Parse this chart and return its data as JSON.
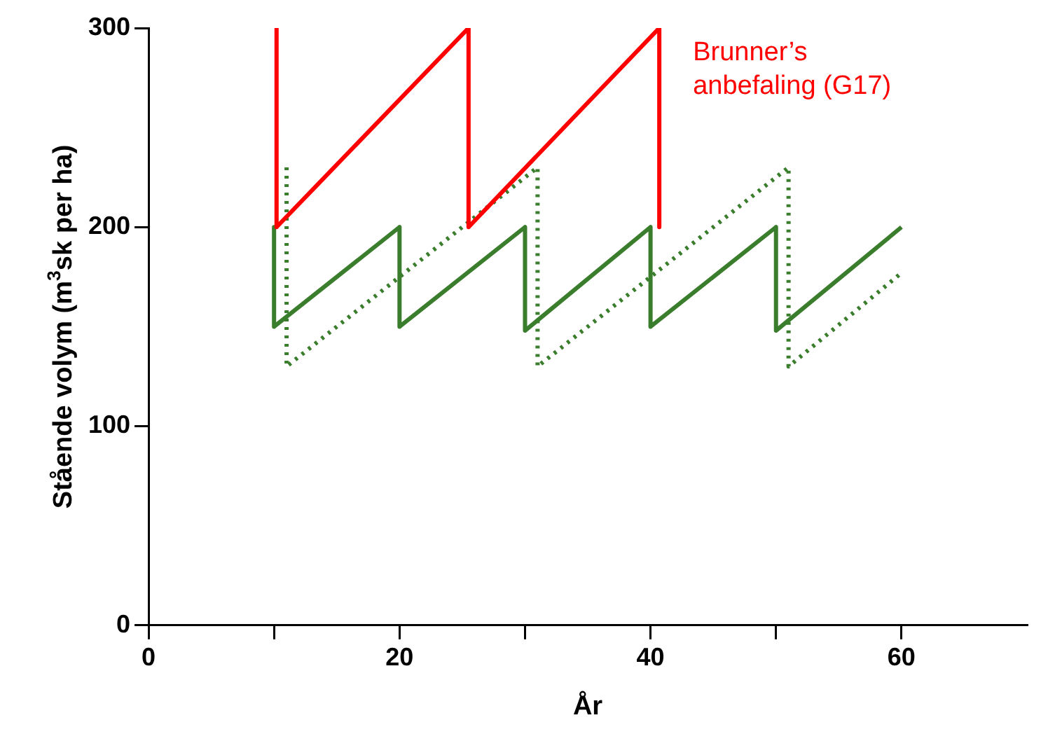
{
  "chart_data": {
    "type": "line",
    "xlabel": "År",
    "ylabel": "Stående volym (m$^{3}$sk per ha)",
    "xlim": [
      0,
      70
    ],
    "ylim": [
      0,
      300
    ],
    "xticks": [
      0,
      {
        "value": 10,
        "label": null
      },
      20,
      {
        "value": 30,
        "label": null
      },
      40,
      {
        "value": 50,
        "label": null
      },
      60
    ],
    "yticks": [
      0,
      100,
      200,
      300
    ],
    "grid": false,
    "legend": false,
    "marker": "none",
    "series": [
      {
        "name": "Brunner’s anbefaling (G17)",
        "color": "#ff0000",
        "line_style": "solid",
        "x": [
          10.2,
          10.2,
          25.5,
          25.5,
          40.7,
          40.7
        ],
        "values": [
          300,
          200,
          300,
          200,
          300,
          200
        ]
      },
      {
        "color": "#3a7d2c",
        "line_style": "solid",
        "x": [
          10,
          10,
          20,
          20,
          30,
          30,
          40,
          40,
          50,
          50,
          60
        ],
        "values": [
          200,
          150,
          200,
          150,
          200,
          148,
          200,
          150,
          200,
          148,
          200
        ]
      },
      {
        "color": "#3a7d2c",
        "line_style": "dotted",
        "x": [
          11,
          11,
          31,
          31,
          51,
          51,
          60
        ],
        "values": [
          230,
          130,
          230,
          130,
          230,
          130,
          177
        ]
      }
    ]
  }
}
